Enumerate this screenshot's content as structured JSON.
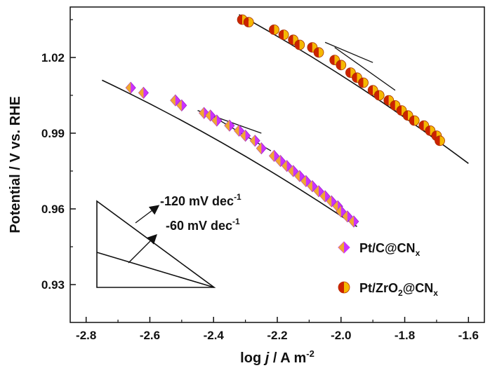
{
  "chart_data": {
    "type": "scatter",
    "xlabel_main": "log ",
    "xlabel_italic": "j",
    "xlabel_unit": " / A m",
    "xlabel_sup": "-2",
    "ylabel": "Potential / V vs. RHE",
    "xlim": [
      -2.85,
      -1.55
    ],
    "ylim": [
      0.915,
      1.04
    ],
    "xticks": [
      -2.8,
      -2.6,
      -2.4,
      -2.2,
      -2.0,
      -1.8,
      -1.6
    ],
    "xtick_labels": [
      "-2.8",
      "-2.6",
      "-2.4",
      "-2.2",
      "-2.0",
      "-1.8",
      "-1.6"
    ],
    "yticks": [
      0.93,
      0.96,
      0.99,
      1.02
    ],
    "ytick_labels": [
      "0.93",
      "0.96",
      "0.99",
      "1.02"
    ],
    "grid": false,
    "legend_position": "bottom-right",
    "series": [
      {
        "name_main": "Pt/C@CN",
        "name_sub": "x",
        "marker": "diamond",
        "color": "#cc33ff",
        "color_alt": "#f0a830",
        "points": [
          [
            -2.66,
            1.008
          ],
          [
            -2.62,
            1.006
          ],
          [
            -2.52,
            1.003
          ],
          [
            -2.5,
            1.001
          ],
          [
            -2.43,
            0.998
          ],
          [
            -2.41,
            0.997
          ],
          [
            -2.39,
            0.995
          ],
          [
            -2.35,
            0.993
          ],
          [
            -2.32,
            0.991
          ],
          [
            -2.3,
            0.989
          ],
          [
            -2.27,
            0.987
          ],
          [
            -2.25,
            0.984
          ],
          [
            -2.21,
            0.981
          ],
          [
            -2.19,
            0.979
          ],
          [
            -2.17,
            0.977
          ],
          [
            -2.15,
            0.975
          ],
          [
            -2.13,
            0.973
          ],
          [
            -2.11,
            0.971
          ],
          [
            -2.09,
            0.969
          ],
          [
            -2.07,
            0.967
          ],
          [
            -2.05,
            0.965
          ],
          [
            -2.03,
            0.963
          ],
          [
            -2.01,
            0.961
          ],
          [
            -2.0,
            0.959
          ],
          [
            -1.98,
            0.957
          ],
          [
            -1.96,
            0.955
          ]
        ]
      },
      {
        "name_main": "Pt/ZrO",
        "name_sub": "2",
        "name_main2": "@CN",
        "name_sub2": "x",
        "marker": "circle",
        "color": "#cc2200",
        "color_alt": "#f5b800",
        "points": [
          [
            -2.31,
            1.035
          ],
          [
            -2.29,
            1.034
          ],
          [
            -2.21,
            1.031
          ],
          [
            -2.18,
            1.029
          ],
          [
            -2.15,
            1.027
          ],
          [
            -2.13,
            1.025
          ],
          [
            -2.09,
            1.024
          ],
          [
            -2.07,
            1.022
          ],
          [
            -2.02,
            1.019
          ],
          [
            -2.0,
            1.017
          ],
          [
            -1.97,
            1.014
          ],
          [
            -1.95,
            1.012
          ],
          [
            -1.93,
            1.01
          ],
          [
            -1.9,
            1.007
          ],
          [
            -1.88,
            1.005
          ],
          [
            -1.85,
            1.003
          ],
          [
            -1.83,
            1.001
          ],
          [
            -1.81,
            0.999
          ],
          [
            -1.79,
            0.997
          ],
          [
            -1.77,
            0.995
          ],
          [
            -1.74,
            0.993
          ],
          [
            -1.72,
            0.991
          ],
          [
            -1.7,
            0.989
          ],
          [
            -1.69,
            0.987
          ]
        ]
      }
    ],
    "fit_lines": [
      {
        "x": [
          -2.75,
          -1.95
        ],
        "y": [
          1.011,
          0.953
        ],
        "type": "curve-C"
      },
      {
        "x": [
          -2.32,
          -1.6
        ],
        "y": [
          1.037,
          0.978
        ],
        "type": "curve-Zr"
      },
      {
        "x": [
          -2.45,
          -2.25
        ],
        "y": [
          0.999,
          0.99
        ],
        "type": "tangent"
      },
      {
        "x": [
          -2.05,
          -1.9
        ],
        "y": [
          1.026,
          1.018
        ],
        "type": "tangent"
      },
      {
        "x": [
          -2.42,
          -2.22
        ],
        "y": [
          0.998,
          0.983
        ],
        "type": "tangent"
      },
      {
        "x": [
          -2.02,
          -1.83
        ],
        "y": [
          1.024,
          1.007
        ],
        "type": "tangent"
      }
    ],
    "annotations": [
      {
        "main": "-120 mV dec",
        "sup": "-1"
      },
      {
        "main": "-60 mV dec",
        "sup": "-1"
      }
    ]
  }
}
